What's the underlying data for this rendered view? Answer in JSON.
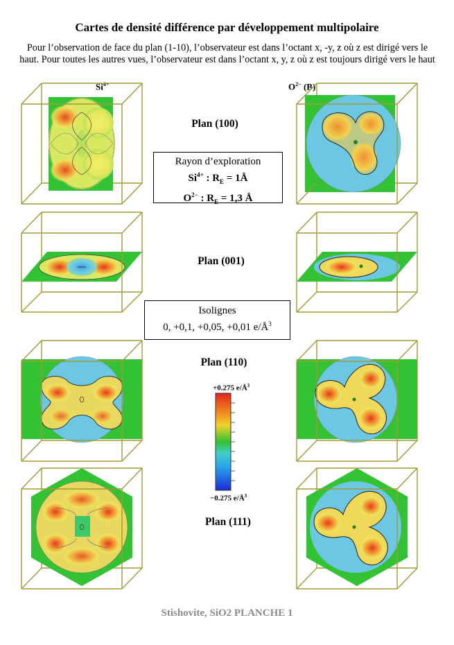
{
  "title": "Cartes de densité différence par développement multipolaire",
  "intro": "Pour l’observation de face du plan (1-10), l’observateur est dans l’octant x, -y, z où z est dirigé vers le haut. Pour toutes les autres vues, l’observateur est dans l’octant x, y, z où z est toujours dirigé vers le haut",
  "columns": {
    "left": {
      "base": "Si",
      "sup": "4+"
    },
    "right": {
      "base": "O",
      "sup": "2−",
      "suffix": " (B)"
    }
  },
  "planes": [
    {
      "label": "Plan (100)"
    },
    {
      "label": "Plan (001)"
    },
    {
      "label": "Plan (110)"
    },
    {
      "label": "Plan (111)"
    }
  ],
  "exploration_box": {
    "title": "Rayon d’exploration",
    "si_ion": "Si",
    "si_charge": "4+",
    "si_value": " : R",
    "si_sub": "E",
    "si_radius": " = 1Å",
    "o_ion": "O",
    "o_charge": "2−",
    "o_value": " : R",
    "o_sub": "E",
    "o_radius": " = 1,3 Å"
  },
  "isolines_box": {
    "title": "Isolignes",
    "values": "0, +0,1, +0,05, +0,01 e/Å",
    "values_sup": "3"
  },
  "colorbar": {
    "max_text": "+0.275 e/Å",
    "max_sup": "3",
    "min_text": "−0.275 e/Å",
    "min_sup": "3",
    "max_value": 0.275,
    "min_value": -0.275
  },
  "footer": "Stishovite, SiO2  PLANCHE 1",
  "colors": {
    "cube_edge": "#a09a33",
    "plane_green": "#33c233",
    "high_density": "#e84a1e",
    "mid_density": "#e8e860",
    "low_density": "#49aee8",
    "contour": "#6d6d6d"
  }
}
